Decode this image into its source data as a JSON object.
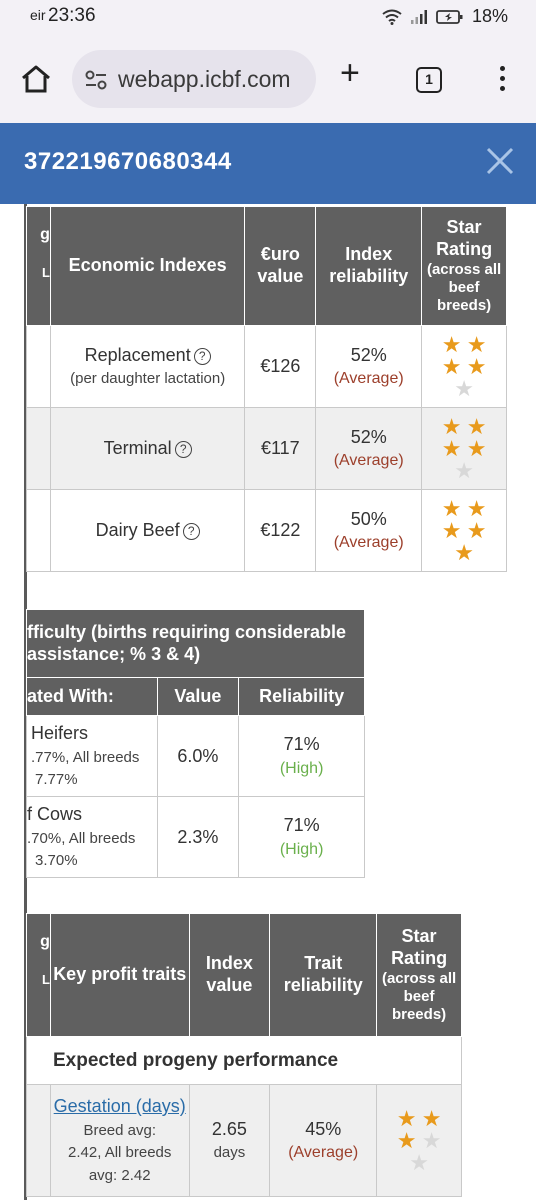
{
  "status_bar": {
    "carrier": "eir",
    "time": "23:36",
    "battery": "18%"
  },
  "browser": {
    "url": "webapp.icbf.com",
    "tab_count": "1"
  },
  "header": {
    "title": "372219670680344"
  },
  "economic_table": {
    "left_clip_top": "g",
    "left_clip_bottom": "L",
    "headers": [
      "Economic Indexes",
      "€uro value",
      "Index reliability",
      "Star Rating",
      "(across all beef breeds)"
    ],
    "rows": [
      {
        "name": "Replacement",
        "sub": "(per daughter lactation)",
        "value": "€126",
        "reliability": "52%",
        "rel_label": "(Average)",
        "stars": 4
      },
      {
        "name": "Terminal",
        "sub": "",
        "value": "€117",
        "reliability": "52%",
        "rel_label": "(Average)",
        "stars": 4
      },
      {
        "name": "Dairy Beef",
        "sub": "",
        "value": "€122",
        "reliability": "50%",
        "rel_label": "(Average)",
        "stars": 5
      }
    ],
    "star_total": 5
  },
  "calving_table": {
    "title": "fficulty (births requiring considerable assistance; % 3 & 4)",
    "headers": [
      "ated With:",
      "Value",
      "Reliability"
    ],
    "rows": [
      {
        "name": "Heifers",
        "line2": ".77%, All breeds",
        "line3": "7.77%",
        "value": "6.0%",
        "reliability": "71%",
        "rel_label": "(High)"
      },
      {
        "name": "f Cows",
        "line2": ".70%, All breeds",
        "line3": "3.70%",
        "value": "2.3%",
        "reliability": "71%",
        "rel_label": "(High)"
      }
    ]
  },
  "profit_table": {
    "left_clip_top": "g",
    "left_clip_bottom": "L",
    "headers": [
      "Key profit traits",
      "Index value",
      "Trait reliability",
      "Star Rating",
      "(across all beef breeds)"
    ],
    "section": "Expected progeny performance",
    "rows": [
      {
        "name": "Gestation (days)",
        "line2": "Breed avg:",
        "line3": "2.42, All breeds",
        "line4": "avg: 2.42",
        "value": "2.65",
        "unit": "days",
        "reliability": "45%",
        "rel_label": "(Average)",
        "stars": 3
      }
    ],
    "star_total": 5
  }
}
